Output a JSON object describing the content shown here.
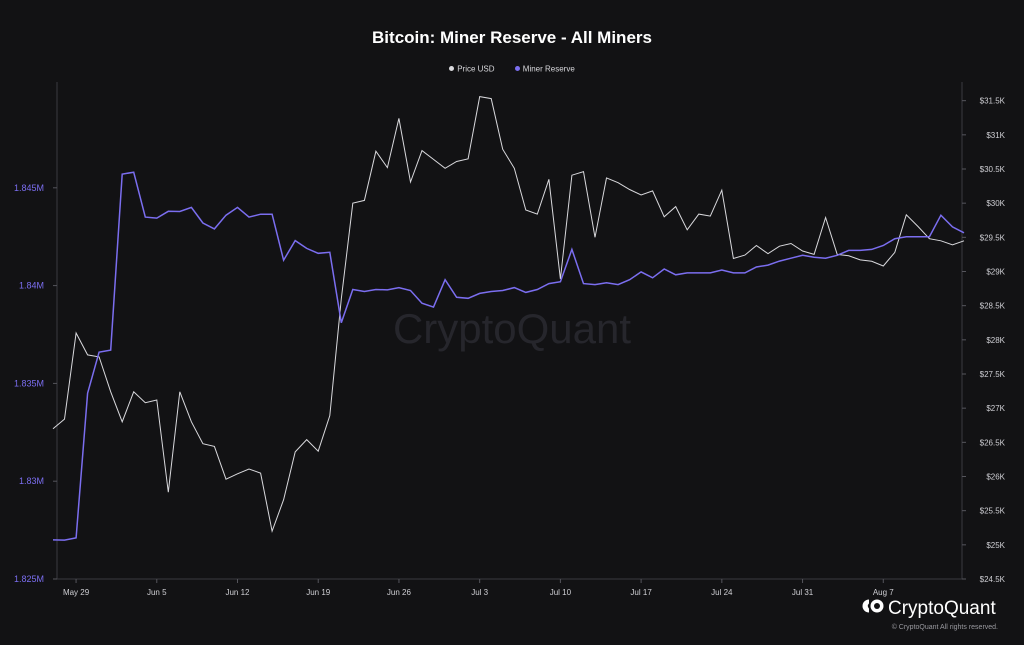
{
  "chart_data": {
    "type": "line",
    "title": "Bitcoin: Miner Reserve - All Miners",
    "watermark": "CryptoQuant",
    "colors": {
      "price": "#d9d9dd",
      "reserve": "#7b6ef0",
      "background": "#121214"
    },
    "legend": [
      {
        "name": "Price USD",
        "color": "#d9d9dd"
      },
      {
        "name": "Miner Reserve",
        "color": "#7b6ef0"
      }
    ],
    "legend_placement": "top-center",
    "grid": false,
    "x_ticks": [
      "May 29",
      "Jun 5",
      "Jun 12",
      "Jun 19",
      "Jun 26",
      "Jul 3",
      "Jul 10",
      "Jul 17",
      "Jul 24",
      "Jul 31",
      "Aug 7"
    ],
    "x": [
      "May 27",
      "May 28",
      "May 29",
      "May 30",
      "May 31",
      "Jun 1",
      "Jun 2",
      "Jun 3",
      "Jun 4",
      "Jun 5",
      "Jun 6",
      "Jun 7",
      "Jun 8",
      "Jun 9",
      "Jun 10",
      "Jun 11",
      "Jun 12",
      "Jun 13",
      "Jun 14",
      "Jun 15",
      "Jun 16",
      "Jun 17",
      "Jun 18",
      "Jun 19",
      "Jun 20",
      "Jun 21",
      "Jun 22",
      "Jun 23",
      "Jun 24",
      "Jun 25",
      "Jun 26",
      "Jun 27",
      "Jun 28",
      "Jun 29",
      "Jun 30",
      "Jul 1",
      "Jul 2",
      "Jul 3",
      "Jul 4",
      "Jul 5",
      "Jul 6",
      "Jul 7",
      "Jul 8",
      "Jul 9",
      "Jul 10",
      "Jul 11",
      "Jul 12",
      "Jul 13",
      "Jul 14",
      "Jul 15",
      "Jul 16",
      "Jul 17",
      "Jul 18",
      "Jul 19",
      "Jul 20",
      "Jul 21",
      "Jul 22",
      "Jul 23",
      "Jul 24",
      "Jul 25",
      "Jul 26",
      "Jul 27",
      "Jul 28",
      "Jul 29",
      "Jul 30",
      "Jul 31",
      "Aug 1",
      "Aug 2",
      "Aug 3",
      "Aug 4",
      "Aug 5",
      "Aug 6",
      "Aug 7",
      "Aug 8",
      "Aug 9",
      "Aug 10",
      "Aug 11",
      "Aug 12",
      "Aug 13",
      "Aug 14"
    ],
    "y_left": {
      "ticks": [
        "1.825M",
        "1.83M",
        "1.835M",
        "1.84M",
        "1.845M"
      ],
      "range": [
        1825000,
        1850000
      ]
    },
    "y_right": {
      "ticks": [
        "$24.5K",
        "$25K",
        "$25.5K",
        "$26K",
        "$26.5K",
        "$27K",
        "$27.5K",
        "$28K",
        "$28.5K",
        "$29K",
        "$29.5K",
        "$30K",
        "$30.5K",
        "$31K",
        "$31.5K"
      ],
      "range": [
        24500,
        31700
      ]
    },
    "series": [
      {
        "name": "Price USD",
        "axis": "right",
        "values": [
          26700,
          26840,
          28100,
          27780,
          27750,
          27240,
          26800,
          27240,
          27080,
          27120,
          25770,
          27240,
          26800,
          26480,
          26440,
          25960,
          26040,
          26110,
          26050,
          25200,
          25660,
          26360,
          26540,
          26370,
          26890,
          28600,
          30000,
          30040,
          30760,
          30520,
          31240,
          30310,
          30770,
          30640,
          30510,
          30610,
          30650,
          31560,
          31530,
          30790,
          30510,
          29900,
          29840,
          30350,
          28890,
          30410,
          30460,
          29500,
          30370,
          30300,
          30200,
          30120,
          30180,
          29800,
          29950,
          29610,
          29840,
          29810,
          30190,
          29190,
          29240,
          29380,
          29260,
          29370,
          29410,
          29300,
          29250,
          29790,
          29250,
          29230,
          29170,
          29150,
          29080,
          29280,
          29830,
          29660,
          29480,
          29450,
          29390,
          29450
        ]
      },
      {
        "name": "Miner Reserve",
        "axis": "left",
        "values": [
          1827000,
          1826990,
          1827100,
          1834500,
          1836600,
          1836700,
          1845700,
          1845800,
          1843500,
          1843450,
          1843800,
          1843790,
          1844000,
          1843200,
          1842900,
          1843600,
          1844000,
          1843500,
          1843650,
          1843650,
          1841300,
          1842300,
          1841900,
          1841650,
          1841700,
          1838100,
          1839800,
          1839700,
          1839800,
          1839780,
          1839900,
          1839750,
          1839100,
          1838900,
          1840300,
          1839400,
          1839350,
          1839600,
          1839700,
          1839750,
          1839900,
          1839650,
          1839800,
          1840100,
          1840200,
          1841850,
          1840100,
          1840050,
          1840150,
          1840050,
          1840300,
          1840700,
          1840400,
          1840850,
          1840550,
          1840650,
          1840650,
          1840650,
          1840800,
          1840650,
          1840650,
          1840950,
          1841050,
          1841250,
          1841400,
          1841550,
          1841450,
          1841400,
          1841550,
          1841800,
          1841800,
          1841850,
          1842050,
          1842400,
          1842500,
          1842500,
          1842500,
          1843600,
          1843000,
          1842700
        ]
      }
    ]
  },
  "footer": {
    "logo_text": "CryptoQuant",
    "copyright": "© CryptoQuant All rights reserved."
  }
}
